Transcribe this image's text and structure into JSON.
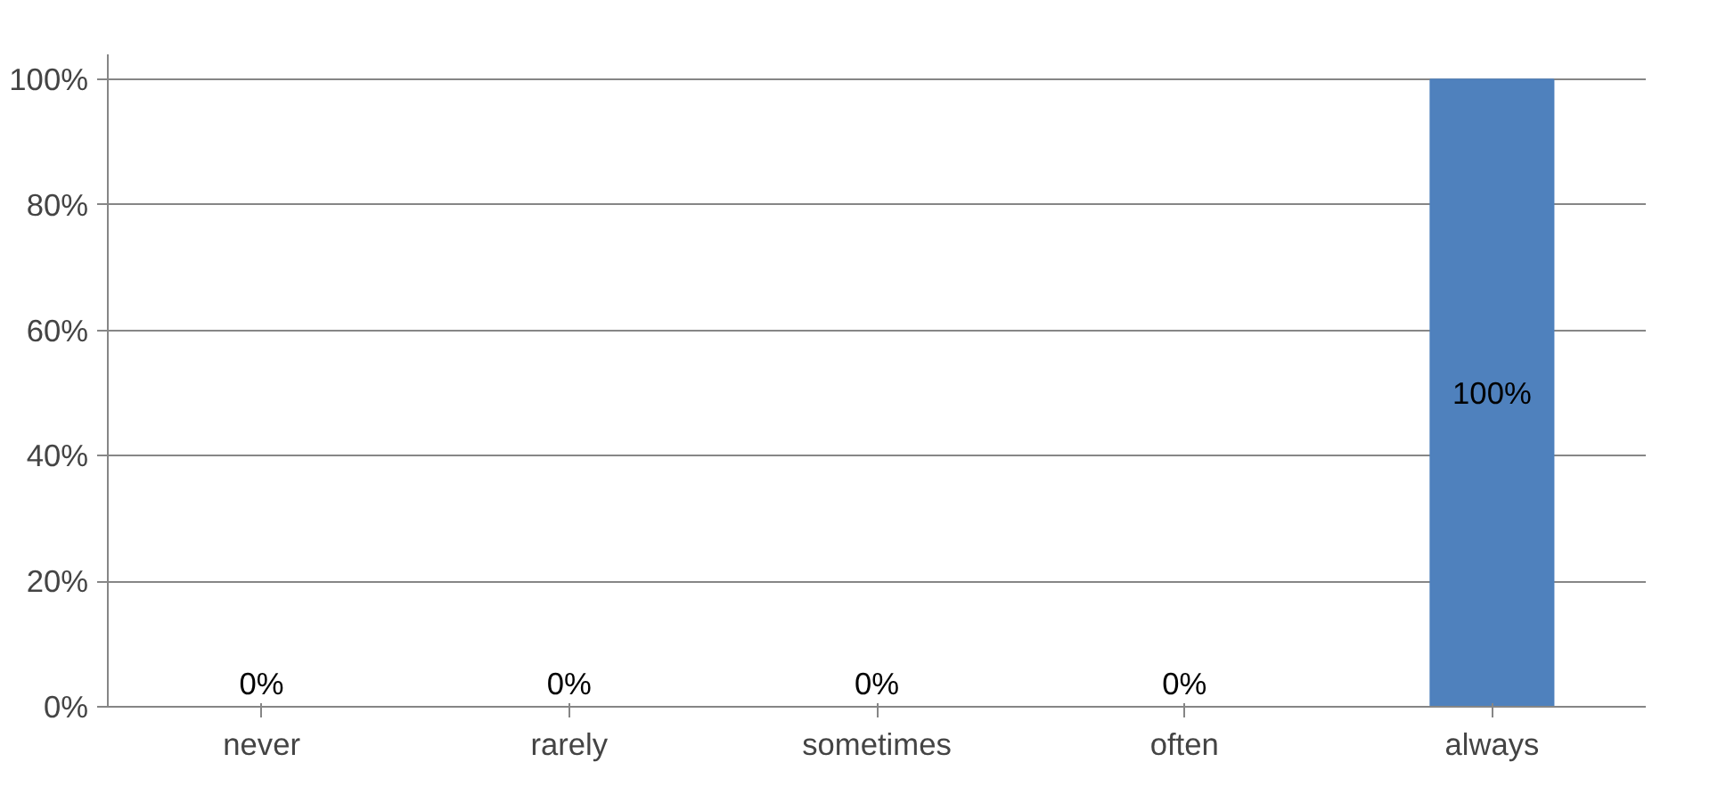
{
  "chart_data": {
    "type": "bar",
    "categories": [
      "never",
      "rarely",
      "sometimes",
      "often",
      "always"
    ],
    "values": [
      0,
      0,
      0,
      0,
      100
    ],
    "value_labels": [
      "0%",
      "0%",
      "0%",
      "0%",
      "100%"
    ],
    "color": "#4f81bd",
    "ylim": [
      0,
      100
    ],
    "yticks": [
      {
        "value": 0,
        "label": "0%"
      },
      {
        "value": 20,
        "label": "20%"
      },
      {
        "value": 40,
        "label": "40%"
      },
      {
        "value": 60,
        "label": "60%"
      },
      {
        "value": 80,
        "label": "80%"
      },
      {
        "value": 100,
        "label": "100%"
      }
    ],
    "grid": "y"
  }
}
